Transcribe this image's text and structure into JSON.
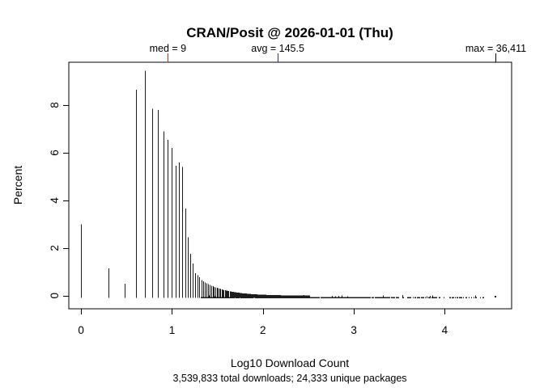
{
  "chart_data": {
    "type": "bar",
    "variant": "histogram-spike-plot",
    "title": "CRAN/Posit @ 2026-01-01 (Thu)",
    "xlabel": "Log10 Download Count",
    "ylabel": "Percent",
    "subtitle": "3,539,833 total downloads; 24,333 unique packages",
    "totals": {
      "total_downloads": "3,539,833",
      "unique_packages": "24,333"
    },
    "xlim": [
      -0.135,
      4.735
    ],
    "ylim": [
      -0.55,
      9.8
    ],
    "grid": "off",
    "x_ticks": [
      0,
      1,
      2,
      3,
      4
    ],
    "x_tick_labels": [
      "0",
      "1",
      "2",
      "3",
      "4"
    ],
    "y_ticks": [
      0,
      2,
      4,
      6,
      8
    ],
    "y_tick_labels": [
      "0",
      "2",
      "4",
      "6",
      "8"
    ],
    "annotations": [
      {
        "name": "median",
        "label": "med = 9",
        "value": 9,
        "log10": 0.9542,
        "color": "#e42321"
      },
      {
        "name": "average",
        "label": "avg = 145.5",
        "value": 145.5,
        "log10": 2.1629,
        "color": "#2b2bd0"
      },
      {
        "name": "maximum",
        "label": "max = 36,411",
        "value": 36411,
        "log10": 4.5612,
        "color": "#000000"
      }
    ],
    "spikes": [
      {
        "downloads": 1,
        "x": 0.0,
        "pct": 3.0
      },
      {
        "downloads": 2,
        "x": 0.301,
        "pct": 1.15
      },
      {
        "downloads": 3,
        "x": 0.4771,
        "pct": 0.5
      },
      {
        "downloads": 4,
        "x": 0.6021,
        "pct": 8.65
      },
      {
        "downloads": 5,
        "x": 0.699,
        "pct": 9.45
      },
      {
        "downloads": 6,
        "x": 0.7782,
        "pct": 7.85
      },
      {
        "downloads": 7,
        "x": 0.8451,
        "pct": 7.8
      },
      {
        "downloads": 8,
        "x": 0.9031,
        "pct": 6.9
      },
      {
        "downloads": 9,
        "x": 0.9542,
        "pct": 6.55
      },
      {
        "downloads": 10,
        "x": 1.0,
        "pct": 6.2
      },
      {
        "downloads": 11,
        "x": 1.0414,
        "pct": 5.45
      },
      {
        "downloads": 12,
        "x": 1.0792,
        "pct": 5.6
      },
      {
        "downloads": 13,
        "x": 1.1139,
        "pct": 5.4
      },
      {
        "downloads": 14,
        "x": 1.1461,
        "pct": 3.65
      },
      {
        "downloads": 15,
        "x": 1.1761,
        "pct": 2.45
      },
      {
        "downloads": 16,
        "x": 1.2041,
        "pct": 1.75
      },
      {
        "downloads": 17,
        "x": 1.2304,
        "pct": 1.35
      },
      {
        "downloads": 18,
        "x": 1.2553,
        "pct": 0.95
      },
      {
        "downloads": 19,
        "x": 1.2788,
        "pct": 0.85
      },
      {
        "downloads": 20,
        "x": 1.301,
        "pct": 0.78
      }
    ],
    "tail_envelope": {
      "n_start": 21,
      "n_end": 320,
      "base_pct": 0.72,
      "ref_n": 20,
      "exponent": 1.8
    },
    "baseline_row": {
      "x_start": 1.32,
      "x_end": 4.42,
      "solid_until": 3.0,
      "end_density": 0.45
    },
    "max_point": {
      "x": 4.5612,
      "pct": 0.01
    },
    "line_color": "#1c1c1c",
    "box_color": "#000000"
  }
}
